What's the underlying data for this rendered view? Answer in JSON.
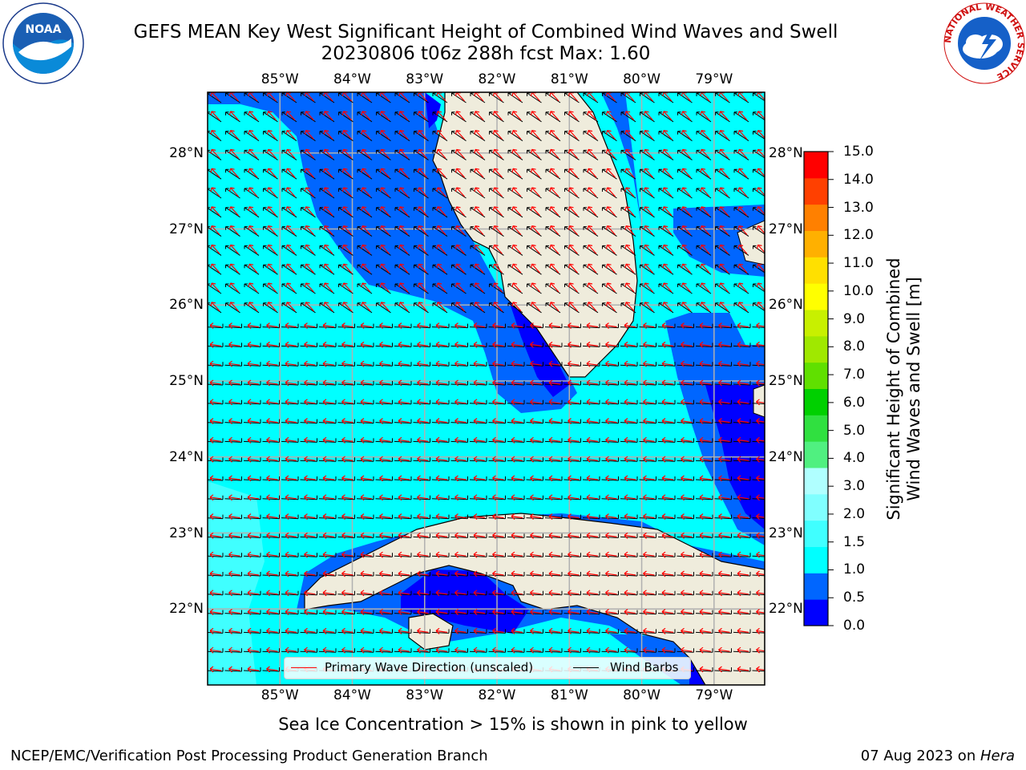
{
  "title": {
    "line1": "GEFS MEAN Key West Significant Height of Combined Wind Waves and Swell",
    "line2": "20230806 t06z 288h fcst   Max: 1.60"
  },
  "logos": {
    "left": {
      "icon": "noaa-logo",
      "text": "NOAA"
    },
    "right": {
      "icon": "nws-logo",
      "ring_text": "NATIONAL WEATHER SERVICE"
    }
  },
  "map": {
    "projection": "plate-carree",
    "lon_range": [
      -86.0,
      -78.3
    ],
    "lat_range": [
      21.0,
      28.8
    ],
    "lon_ticks": [
      "85°W",
      "84°W",
      "83°W",
      "82°W",
      "81°W",
      "80°W",
      "79°W"
    ],
    "lat_ticks": [
      "28°N",
      "27°N",
      "26°N",
      "25°N",
      "24°N",
      "23°N",
      "22°N"
    ],
    "grid": true,
    "land_color": "#efecdc",
    "wave_arrow_color": "#ff0000",
    "wind_barb_color": "#000000"
  },
  "legend": {
    "placement": "lower-center",
    "items": [
      {
        "label": "Primary Wave Direction (unscaled)",
        "color": "#ff0000"
      },
      {
        "label": "Wind Barbs",
        "color": "#000000"
      }
    ]
  },
  "colorbar": {
    "title_line1": "Significant Height of Combined",
    "title_line2": "Wind Waves and Swell [m]",
    "ticks": [
      "15.0",
      "14.0",
      "13.0",
      "12.0",
      "11.0",
      "10.0",
      "9.0",
      "8.0",
      "7.0",
      "6.0",
      "5.0",
      "4.0",
      "3.0",
      "2.0",
      "1.5",
      "1.0",
      "0.5",
      "0.0"
    ],
    "colors_bottom_to_top": [
      "#0000ff",
      "#0066ff",
      "#00ffff",
      "#40ffff",
      "#80ffff",
      "#b0ffff",
      "#50f080",
      "#30e040",
      "#00d000",
      "#60e000",
      "#a0e800",
      "#c8f000",
      "#ffff00",
      "#ffe000",
      "#ffb000",
      "#ff8000",
      "#ff4000",
      "#ff0000"
    ]
  },
  "note": "Sea Ice Concentration > 15% is shown in pink to yellow",
  "footer": {
    "credit": "NCEP/EMC/Verification Post Processing Product Generation Branch",
    "date_prefix": "07 Aug 2023 on ",
    "host": "Hera"
  }
}
